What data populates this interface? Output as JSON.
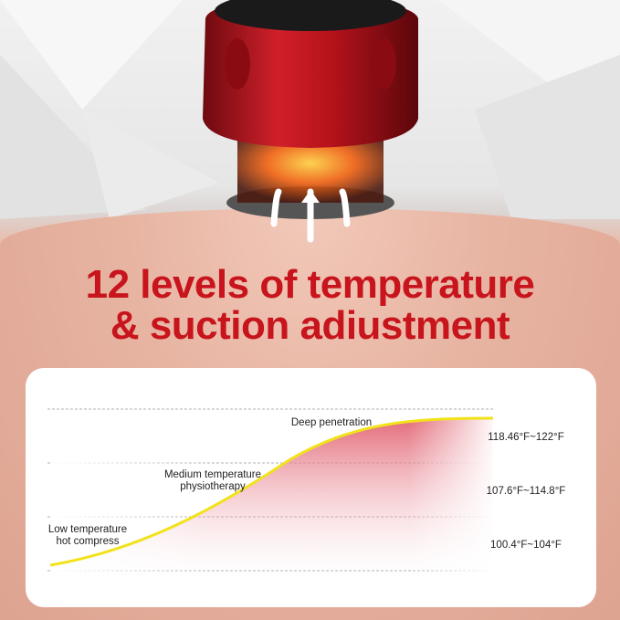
{
  "heading": {
    "line1": "12 levels of temperature",
    "line2": "& suction adiustment"
  },
  "colors": {
    "heading": "#c8141c",
    "curve": "#f2e21a",
    "device": "#b5121b",
    "fill": "#e05a6a"
  },
  "diagram": {
    "stages": [
      {
        "label_line1": "Low temperature",
        "label_line2": "hot compress",
        "range": "100.4°F~104°F"
      },
      {
        "label_line1": "Medium temperature",
        "label_line2": "physiotherapy",
        "range": "107.6°F~114.8°F"
      },
      {
        "label_line1": "Deep penetration",
        "label_line2": "",
        "range": "118.46°F~122°F"
      }
    ]
  }
}
